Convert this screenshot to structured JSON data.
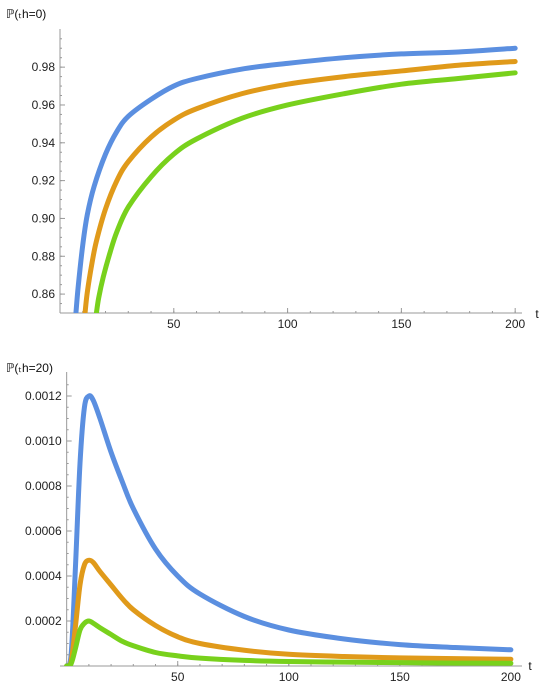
{
  "colors": {
    "blue": "#5b8fe0",
    "orange": "#e09a1a",
    "green": "#78d11c"
  },
  "chart_data": [
    {
      "type": "line",
      "ylabel": "ℙ(ₜh=0)",
      "xlabel": "t",
      "xlim": [
        0,
        203
      ],
      "ylim": [
        0.85,
        0.997
      ],
      "x_ticks": [
        50,
        100,
        150,
        200
      ],
      "y_ticks": [
        0.86,
        0.88,
        0.9,
        0.92,
        0.94,
        0.96,
        0.98
      ],
      "y_tick_labels": [
        "0.86",
        "0.88",
        "0.90",
        "0.92",
        "0.94",
        "0.96",
        "0.98"
      ],
      "grid": false,
      "series": [
        {
          "color": "#5b8fe0",
          "x": [
            7,
            8,
            10,
            12,
            15,
            20,
            25,
            30,
            40,
            50,
            60,
            80,
            100,
            125,
            150,
            175,
            200
          ],
          "y": [
            0.85,
            0.864,
            0.886,
            0.902,
            0.917,
            0.934,
            0.946,
            0.954,
            0.963,
            0.97,
            0.974,
            0.979,
            0.982,
            0.985,
            0.987,
            0.988,
            0.99
          ]
        },
        {
          "color": "#e09a1a",
          "x": [
            11,
            12,
            14,
            16,
            20,
            25,
            30,
            40,
            50,
            60,
            80,
            100,
            125,
            150,
            175,
            200
          ],
          "y": [
            0.85,
            0.861,
            0.876,
            0.888,
            0.905,
            0.92,
            0.93,
            0.943,
            0.952,
            0.958,
            0.966,
            0.971,
            0.975,
            0.978,
            0.981,
            0.983
          ]
        },
        {
          "color": "#78d11c",
          "x": [
            16,
            17,
            19,
            22,
            25,
            30,
            40,
            50,
            60,
            80,
            100,
            125,
            150,
            175,
            200
          ],
          "y": [
            0.85,
            0.858,
            0.869,
            0.882,
            0.893,
            0.906,
            0.922,
            0.934,
            0.942,
            0.953,
            0.96,
            0.966,
            0.971,
            0.974,
            0.977
          ]
        }
      ]
    },
    {
      "type": "line",
      "ylabel": "ℙ(ₜh=20)",
      "xlabel": "t",
      "xlim": [
        -3,
        205
      ],
      "ylim": [
        0,
        0.00128
      ],
      "x_ticks": [
        50,
        100,
        150,
        200
      ],
      "y_ticks": [
        0.0002,
        0.0004,
        0.0006,
        0.0008,
        0.001,
        0.0012
      ],
      "y_tick_labels": [
        "0.0002",
        "0.0004",
        "0.0006",
        "0.0008",
        "0.0010",
        "0.0012"
      ],
      "grid": false,
      "series": [
        {
          "color": "#5b8fe0",
          "x": [
            0,
            2,
            4,
            6,
            8,
            10,
            12,
            15,
            20,
            25,
            30,
            40,
            50,
            60,
            80,
            100,
            125,
            150,
            175,
            200
          ],
          "y": [
            0,
            5e-05,
            0.00045,
            0.0009,
            0.00115,
            0.0012,
            0.00118,
            0.0011,
            0.00095,
            0.00082,
            0.0007,
            0.00052,
            0.0004,
            0.00032,
            0.00022,
            0.00016,
            0.00012,
            9.5e-05,
            8.2e-05,
            7.2e-05
          ]
        },
        {
          "color": "#e09a1a",
          "x": [
            0,
            2,
            4,
            6,
            8,
            10,
            12,
            15,
            20,
            25,
            30,
            40,
            50,
            60,
            80,
            100,
            125,
            150,
            175,
            200
          ],
          "y": [
            0,
            2e-05,
            0.00018,
            0.00036,
            0.00045,
            0.00047,
            0.00046,
            0.00042,
            0.00036,
            0.0003,
            0.00025,
            0.00018,
            0.00013,
            0.0001,
            7e-05,
            5.2e-05,
            4.2e-05,
            3.6e-05,
            3.3e-05,
            3e-05
          ]
        },
        {
          "color": "#78d11c",
          "x": [
            0,
            2,
            4,
            6,
            8,
            10,
            12,
            15,
            20,
            25,
            30,
            40,
            50,
            60,
            80,
            100,
            125,
            150,
            175,
            200
          ],
          "y": [
            0,
            1e-05,
            8e-05,
            0.00016,
            0.00019,
            0.0002,
            0.00019,
            0.00017,
            0.00014,
            0.00011,
            9e-05,
            6e-05,
            4.5e-05,
            3.5e-05,
            2.5e-05,
            2e-05,
            1.7e-05,
            1.5e-05,
            1.3e-05,
            1.2e-05
          ]
        }
      ]
    }
  ]
}
